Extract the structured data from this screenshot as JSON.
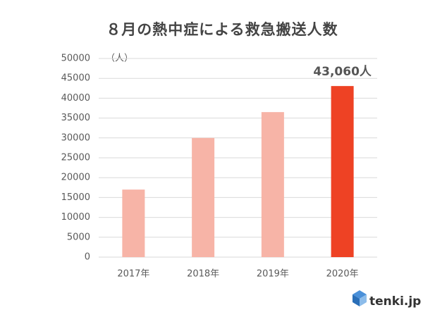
{
  "chart_data": {
    "type": "bar",
    "title": "８月の熱中症による救急搬送人数",
    "y_label": "（人）",
    "categories": [
      "2017年",
      "2018年",
      "2019年",
      "2020年"
    ],
    "values": [
      17000,
      30000,
      36500,
      43060
    ],
    "value_labels": [
      null,
      null,
      null,
      "43,060人"
    ],
    "colors": [
      "#f7b4a7",
      "#f7b4a7",
      "#f7b4a7",
      "#ee4224"
    ],
    "ylim": [
      0,
      50000
    ],
    "yticks": [
      0,
      5000,
      10000,
      15000,
      20000,
      25000,
      30000,
      35000,
      40000,
      45000,
      50000
    ],
    "grid": true,
    "logo": "tenki.jp"
  }
}
